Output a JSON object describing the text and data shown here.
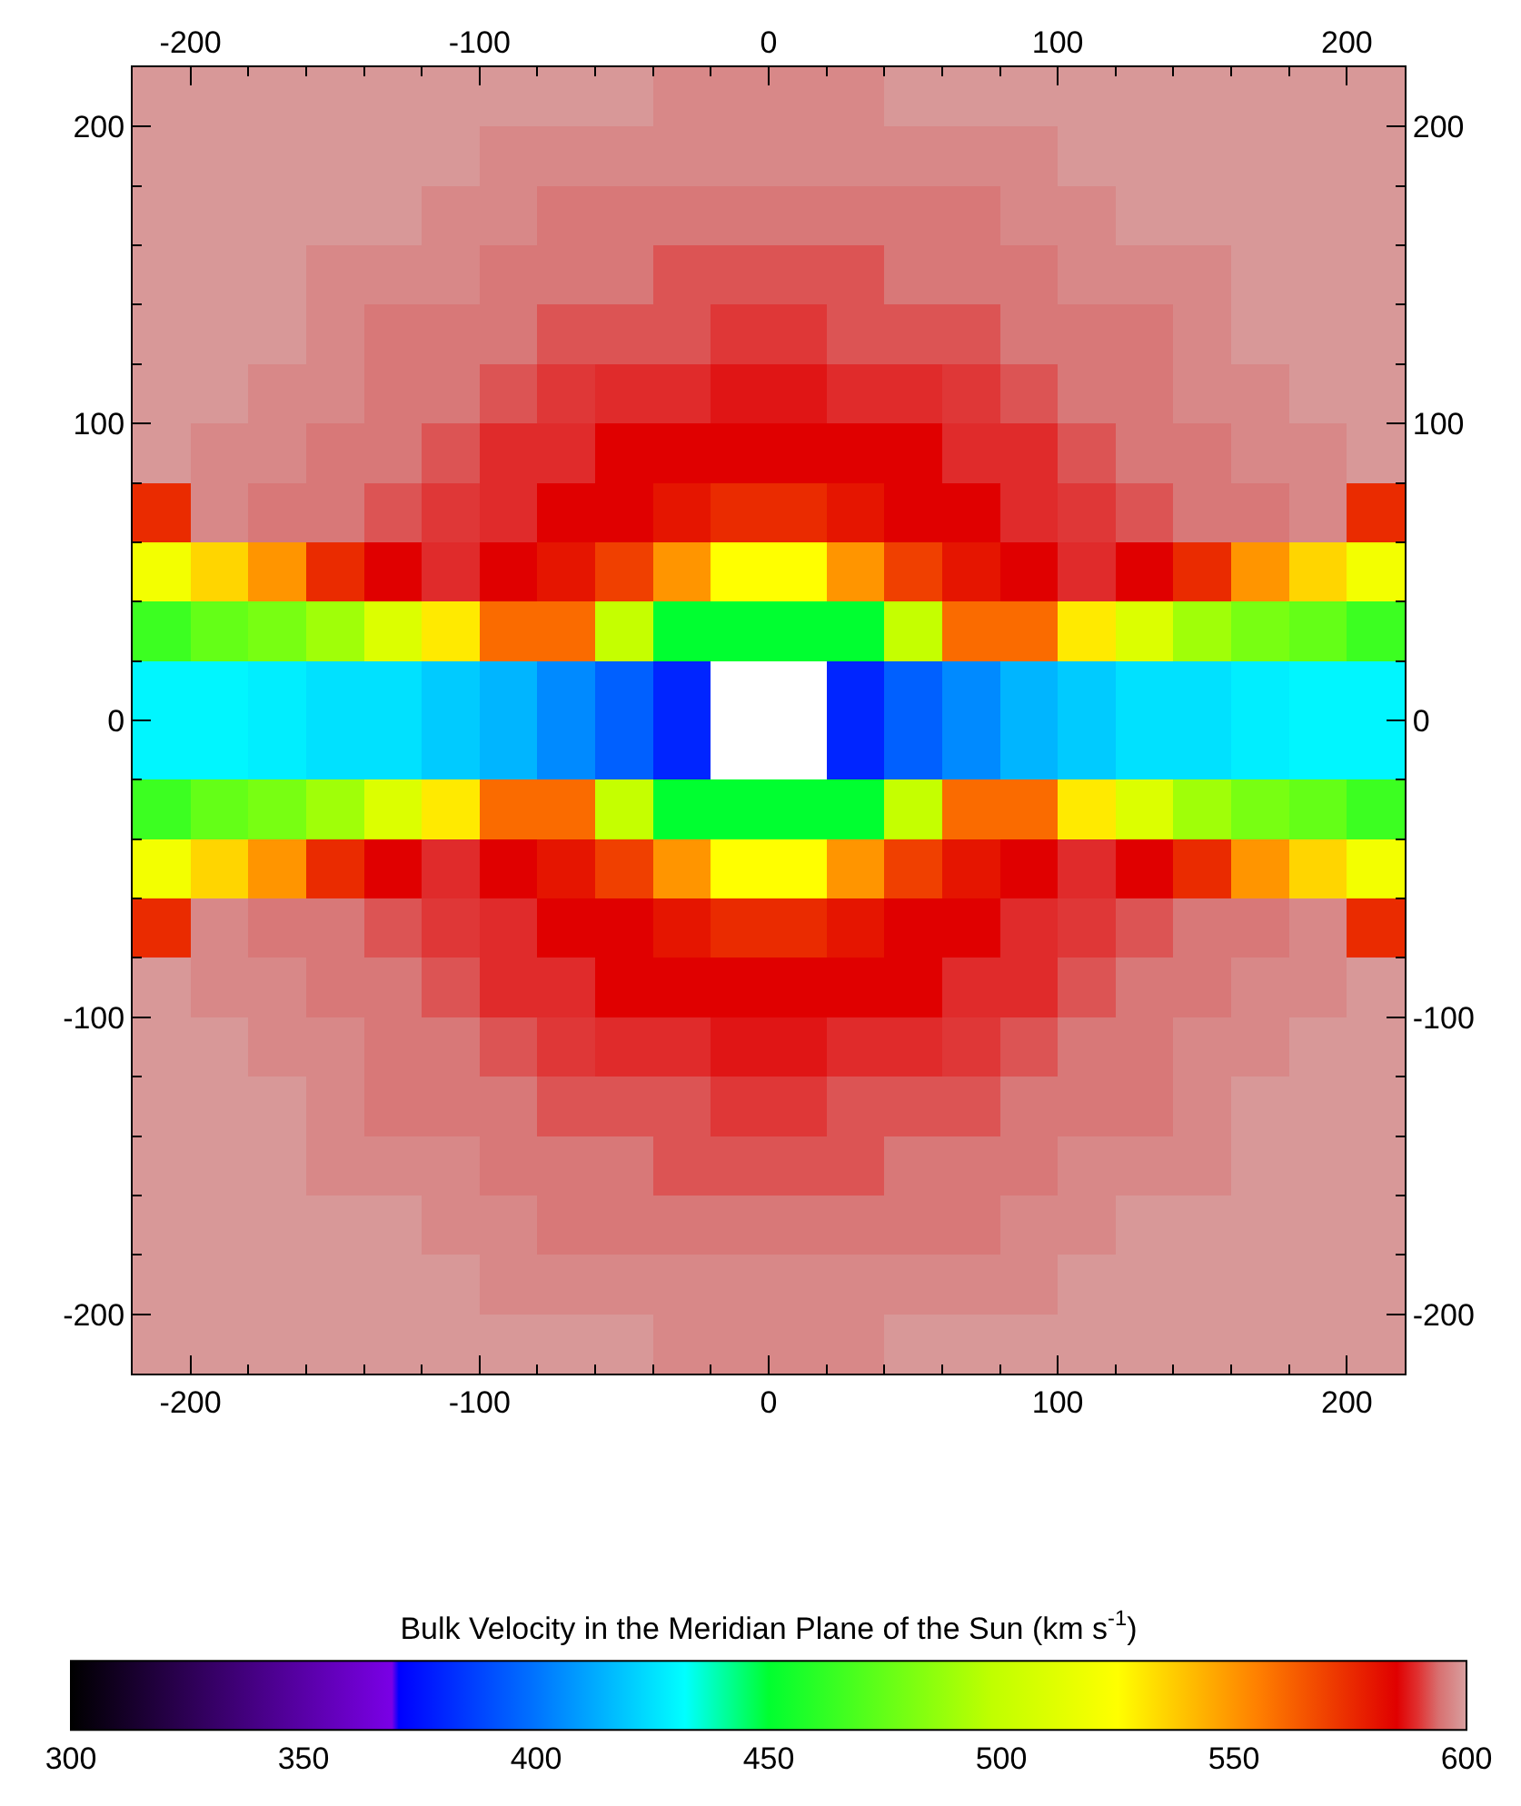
{
  "chart_data": {
    "type": "heatmap",
    "clabel": "Bulk Velocity in the Meridian Plane of the Sun (km s$^{-1}$)",
    "x": [
      -210,
      -190,
      -170,
      -150,
      -130,
      -110,
      -90,
      -70,
      -50,
      -30,
      -10,
      10,
      30,
      50,
      70,
      90,
      110,
      130,
      150,
      170,
      190,
      210
    ],
    "y": [
      210,
      190,
      170,
      150,
      130,
      110,
      90,
      70,
      50,
      30,
      10,
      -10,
      -30,
      -50,
      -70,
      -90,
      -110,
      -130,
      -150,
      -170,
      -190,
      -210
    ],
    "cells": [
      [
        599,
        599,
        599,
        599,
        599,
        599,
        599,
        599,
        599,
        597,
        597,
        597,
        597,
        599,
        599,
        599,
        599,
        599,
        599,
        599,
        599,
        599
      ],
      [
        599,
        599,
        599,
        599,
        599,
        599,
        597,
        597,
        597,
        597,
        597,
        597,
        597,
        597,
        597,
        597,
        599,
        599,
        599,
        599,
        599,
        599
      ],
      [
        599,
        599,
        599,
        599,
        599,
        597,
        597,
        595,
        595,
        595,
        595,
        595,
        595,
        595,
        595,
        597,
        597,
        599,
        599,
        599,
        599,
        599
      ],
      [
        599,
        599,
        599,
        597,
        597,
        597,
        595,
        595,
        595,
        592,
        592,
        592,
        592,
        595,
        595,
        595,
        597,
        597,
        597,
        599,
        599,
        599
      ],
      [
        599,
        599,
        599,
        597,
        595,
        595,
        595,
        592,
        592,
        592,
        590,
        590,
        592,
        592,
        592,
        595,
        595,
        595,
        597,
        599,
        599,
        599
      ],
      [
        599,
        599,
        597,
        597,
        595,
        595,
        592,
        590,
        589,
        589,
        587,
        587,
        589,
        589,
        590,
        592,
        595,
        595,
        597,
        597,
        599,
        599
      ],
      [
        599,
        597,
        597,
        595,
        595,
        592,
        589,
        589,
        585,
        585,
        585,
        585,
        585,
        585,
        589,
        589,
        592,
        595,
        595,
        597,
        597,
        599
      ],
      [
        575,
        597,
        595,
        595,
        592,
        590,
        589,
        585,
        585,
        580,
        575,
        575,
        580,
        585,
        585,
        589,
        590,
        592,
        595,
        595,
        597,
        575
      ],
      [
        520,
        535,
        550,
        575,
        585,
        589,
        585,
        580,
        570,
        550,
        525,
        525,
        550,
        570,
        580,
        585,
        589,
        585,
        575,
        550,
        535,
        520
      ],
      [
        465,
        475,
        480,
        490,
        510,
        530,
        560,
        560,
        500,
        450,
        450,
        450,
        450,
        500,
        560,
        560,
        530,
        510,
        490,
        480,
        475,
        465
      ],
      [
        430,
        430,
        428,
        425,
        425,
        420,
        415,
        405,
        395,
        380,
        null,
        null,
        380,
        395,
        405,
        415,
        420,
        425,
        425,
        428,
        430,
        430
      ],
      [
        430,
        430,
        428,
        425,
        425,
        420,
        415,
        405,
        395,
        380,
        null,
        null,
        380,
        395,
        405,
        415,
        420,
        425,
        425,
        428,
        430,
        430
      ],
      [
        465,
        475,
        480,
        490,
        510,
        530,
        560,
        560,
        500,
        450,
        450,
        450,
        450,
        500,
        560,
        560,
        530,
        510,
        490,
        480,
        475,
        465
      ],
      [
        520,
        535,
        550,
        575,
        585,
        589,
        585,
        580,
        570,
        550,
        525,
        525,
        550,
        570,
        580,
        585,
        589,
        585,
        575,
        550,
        535,
        520
      ],
      [
        575,
        597,
        595,
        595,
        592,
        590,
        589,
        585,
        585,
        580,
        575,
        575,
        580,
        585,
        585,
        589,
        590,
        592,
        595,
        595,
        597,
        575
      ],
      [
        599,
        597,
        597,
        595,
        595,
        592,
        589,
        589,
        585,
        585,
        585,
        585,
        585,
        585,
        589,
        589,
        592,
        595,
        595,
        597,
        597,
        599
      ],
      [
        599,
        599,
        597,
        597,
        595,
        595,
        592,
        590,
        589,
        589,
        587,
        587,
        589,
        589,
        590,
        592,
        595,
        595,
        597,
        597,
        599,
        599
      ],
      [
        599,
        599,
        599,
        597,
        595,
        595,
        595,
        592,
        592,
        592,
        590,
        590,
        592,
        592,
        592,
        595,
        595,
        595,
        597,
        599,
        599,
        599
      ],
      [
        599,
        599,
        599,
        597,
        597,
        597,
        595,
        595,
        595,
        592,
        592,
        592,
        592,
        595,
        595,
        595,
        597,
        597,
        597,
        599,
        599,
        599
      ],
      [
        599,
        599,
        599,
        599,
        599,
        597,
        597,
        595,
        595,
        595,
        595,
        595,
        595,
        595,
        595,
        597,
        597,
        599,
        599,
        599,
        599,
        599
      ],
      [
        599,
        599,
        599,
        599,
        599,
        599,
        597,
        597,
        597,
        597,
        597,
        597,
        597,
        597,
        597,
        597,
        599,
        599,
        599,
        599,
        599,
        599
      ],
      [
        599,
        599,
        599,
        599,
        599,
        599,
        599,
        599,
        599,
        597,
        597,
        597,
        597,
        599,
        599,
        599,
        599,
        599,
        599,
        599,
        599,
        599
      ]
    ],
    "clim": [
      300,
      600
    ],
    "cticks": [
      300,
      350,
      400,
      450,
      500,
      550,
      600
    ],
    "xlim": [
      -220,
      220
    ],
    "xticks": [
      -200,
      -100,
      0,
      100,
      200
    ],
    "ylim": [
      -220,
      220
    ],
    "yticks": [
      -200,
      -100,
      0,
      100,
      200
    ],
    "x2lim": [
      -220,
      220
    ],
    "x2ticks": [
      -200,
      -100,
      0,
      100,
      200
    ],
    "y2lim": [
      -220,
      220
    ],
    "y2ticks": [
      -200,
      -100,
      0,
      100,
      200
    ]
  }
}
